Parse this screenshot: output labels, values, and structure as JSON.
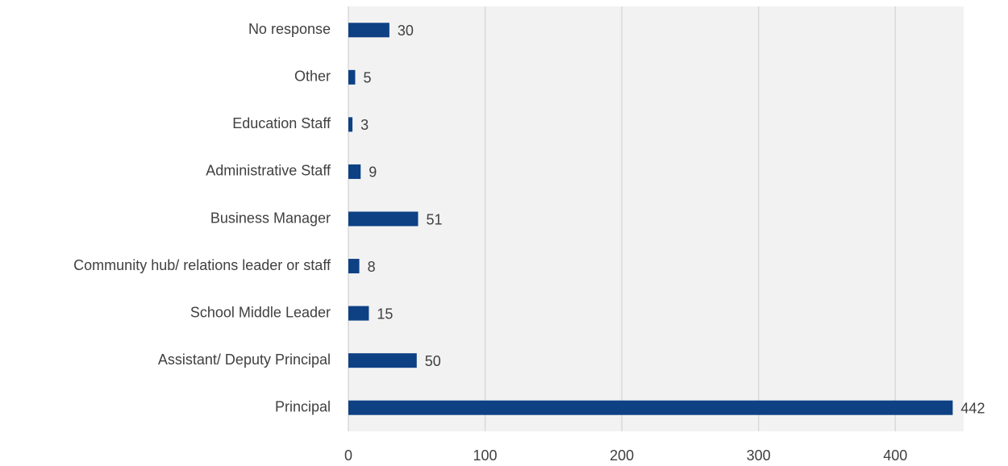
{
  "chart_data": {
    "type": "barh",
    "categories": [
      "No response",
      "Other",
      "Education Staff",
      "Administrative Staff",
      "Business Manager",
      "Community hub/ relations leader or staff",
      "School Middle Leader",
      "Assistant/ Deputy Principal",
      "Principal"
    ],
    "values": [
      30,
      5,
      3,
      9,
      51,
      8,
      15,
      50,
      442
    ],
    "color": "#0e4184",
    "xlim": [
      0,
      450
    ],
    "xticks": [
      0,
      100,
      200,
      300,
      400
    ],
    "grid": true
  }
}
